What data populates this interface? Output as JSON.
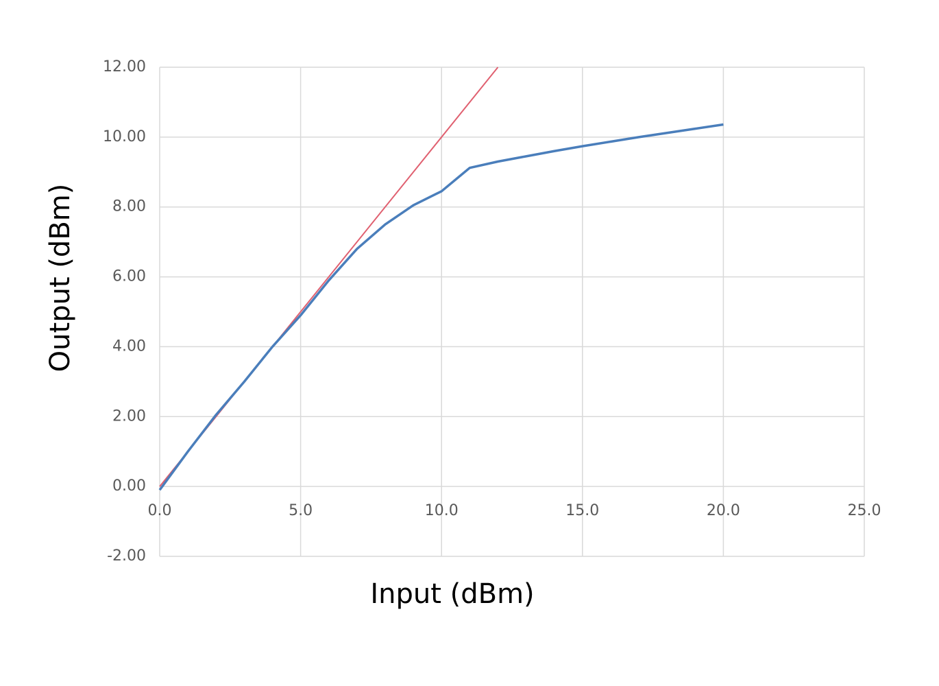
{
  "chart_data": {
    "type": "line",
    "xlabel": "Input (dBm)",
    "ylabel": "Output (dBm)",
    "xlim": [
      0,
      25
    ],
    "ylim": [
      -2,
      12
    ],
    "xticks": [
      {
        "value": 0,
        "label": "0.0"
      },
      {
        "value": 5,
        "label": "5.0"
      },
      {
        "value": 10,
        "label": "10.0"
      },
      {
        "value": 15,
        "label": "15.0"
      },
      {
        "value": 20,
        "label": "20.0"
      },
      {
        "value": 25,
        "label": "25.0"
      }
    ],
    "yticks": [
      {
        "value": -2,
        "label": "-2.00"
      },
      {
        "value": 0,
        "label": "0.00"
      },
      {
        "value": 2,
        "label": "2.00"
      },
      {
        "value": 4,
        "label": "4.00"
      },
      {
        "value": 6,
        "label": "6.00"
      },
      {
        "value": 8,
        "label": "8.00"
      },
      {
        "value": 10,
        "label": "10.00"
      },
      {
        "value": 12,
        "label": "12.00"
      }
    ],
    "grid": true,
    "series": [
      {
        "color": "#e06070",
        "x": [
          0,
          12
        ],
        "values": [
          0,
          12
        ]
      },
      {
        "color": "#4a7ebb",
        "x": [
          0,
          1,
          2,
          3,
          4,
          5,
          6,
          7,
          8,
          9,
          10,
          11,
          12,
          13,
          14,
          15,
          16,
          17,
          18,
          19,
          20
        ],
        "values": [
          -0.1,
          1.0,
          2.05,
          3.0,
          4.0,
          4.9,
          5.9,
          6.8,
          7.5,
          8.05,
          8.45,
          9.12,
          9.3,
          9.45,
          9.6,
          9.74,
          9.87,
          10.0,
          10.12,
          10.24,
          10.36
        ]
      }
    ]
  }
}
